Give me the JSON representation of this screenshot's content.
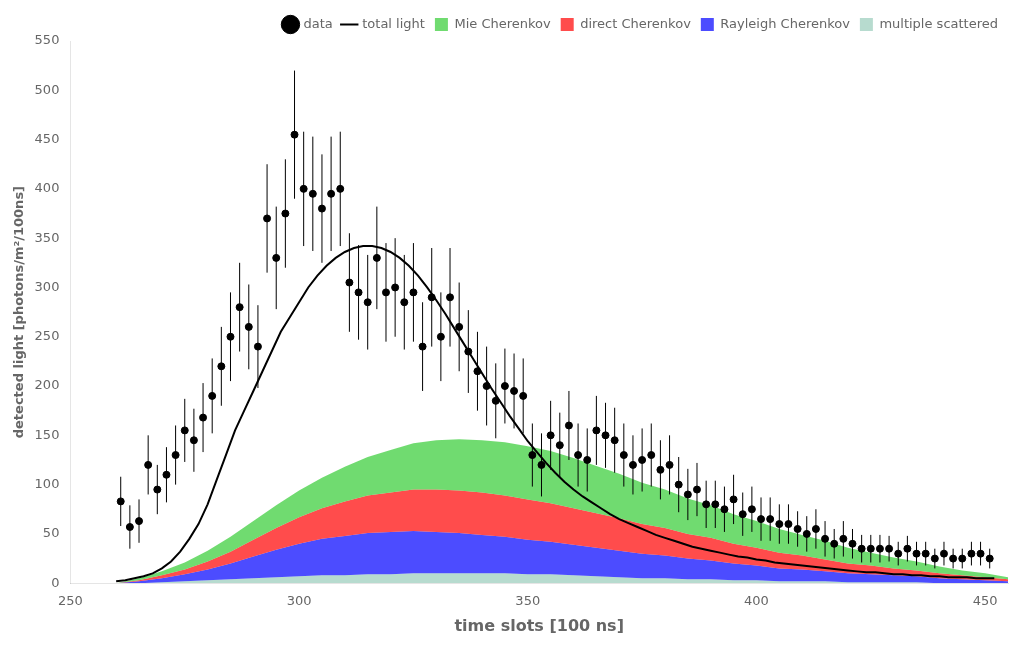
{
  "chart_data": {
    "type": "line",
    "xlabel": "time slots [100 ns]",
    "ylabel": "detected light [photons/m²/100ns]",
    "xlim": [
      250,
      455
    ],
    "ylim": [
      0,
      550
    ],
    "xticks": [
      250,
      300,
      350,
      400,
      450
    ],
    "yticks": [
      0,
      50,
      100,
      150,
      200,
      250,
      300,
      350,
      400,
      450,
      500,
      550
    ],
    "grid": false,
    "legend": "upper right",
    "stacked": true,
    "series": [
      {
        "name": "data",
        "type": "scatter",
        "marker": "circle",
        "color": "#000000",
        "x": [
          261,
          263,
          265,
          267,
          269,
          271,
          273,
          275,
          277,
          279,
          281,
          283,
          285,
          287,
          289,
          291,
          293,
          295,
          297,
          299,
          301,
          303,
          305,
          307,
          309,
          311,
          313,
          315,
          317,
          319,
          321,
          323,
          325,
          327,
          329,
          331,
          333,
          335,
          337,
          339,
          341,
          343,
          345,
          347,
          349,
          351,
          353,
          355,
          357,
          359,
          361,
          363,
          365,
          367,
          369,
          371,
          373,
          375,
          377,
          379,
          381,
          383,
          385,
          387,
          389,
          391,
          393,
          395,
          397,
          399,
          401,
          403,
          405,
          407,
          409,
          411,
          413,
          415,
          417,
          419,
          421,
          423,
          425,
          427,
          429,
          431,
          433,
          435,
          437,
          439,
          441,
          443,
          445,
          447,
          449,
          451
        ],
        "values": [
          83,
          57,
          63,
          120,
          95,
          110,
          130,
          155,
          145,
          168,
          190,
          220,
          250,
          280,
          260,
          240,
          370,
          330,
          375,
          455,
          400,
          395,
          380,
          395,
          400,
          305,
          295,
          285,
          330,
          295,
          300,
          285,
          295,
          240,
          290,
          250,
          290,
          260,
          235,
          215,
          200,
          185,
          200,
          195,
          190,
          130,
          120,
          150,
          140,
          160,
          130,
          125,
          155,
          150,
          145,
          130,
          120,
          125,
          130,
          115,
          120,
          100,
          90,
          95,
          80,
          80,
          75,
          85,
          70,
          75,
          65,
          65,
          60,
          60,
          55,
          50,
          55,
          45,
          40,
          45,
          40,
          35,
          35,
          35,
          35,
          30,
          35,
          30,
          30,
          25,
          30,
          25,
          25,
          30,
          30,
          25
        ],
        "yerr": [
          25,
          22,
          22,
          30,
          25,
          28,
          30,
          32,
          32,
          35,
          38,
          40,
          45,
          45,
          43,
          42,
          55,
          52,
          55,
          65,
          58,
          58,
          55,
          58,
          58,
          50,
          48,
          48,
          52,
          50,
          50,
          48,
          50,
          45,
          50,
          45,
          50,
          45,
          42,
          40,
          40,
          38,
          38,
          38,
          38,
          32,
          32,
          35,
          33,
          35,
          32,
          32,
          35,
          33,
          33,
          32,
          30,
          32,
          32,
          30,
          30,
          28,
          26,
          27,
          24,
          24,
          23,
          25,
          22,
          23,
          22,
          22,
          20,
          20,
          18,
          18,
          20,
          18,
          15,
          18,
          15,
          14,
          14,
          14,
          13,
          12,
          13,
          12,
          12,
          10,
          12,
          10,
          10,
          12,
          12,
          10
        ]
      },
      {
        "name": "total light",
        "type": "line",
        "line_style": "solid",
        "color": "#000000",
        "x": [
          260,
          262,
          264,
          266,
          268,
          270,
          272,
          274,
          276,
          278,
          280,
          282,
          284,
          286,
          288,
          290,
          292,
          294,
          296,
          298,
          300,
          302,
          304,
          306,
          308,
          310,
          312,
          314,
          316,
          318,
          320,
          322,
          324,
          326,
          328,
          330,
          332,
          334,
          336,
          338,
          340,
          342,
          344,
          346,
          348,
          350,
          352,
          354,
          356,
          358,
          360,
          362,
          364,
          366,
          368,
          370,
          372,
          374,
          376,
          378,
          380,
          382,
          384,
          386,
          388,
          390,
          392,
          394,
          396,
          398,
          400,
          402,
          404,
          406,
          408,
          410,
          412,
          414,
          416,
          418,
          420,
          422,
          424,
          426,
          428,
          430,
          432,
          434,
          436,
          438,
          440,
          442,
          444,
          446,
          448,
          450,
          452
        ],
        "values": [
          2,
          3,
          5,
          7,
          10,
          15,
          22,
          32,
          45,
          60,
          80,
          105,
          130,
          155,
          175,
          195,
          215,
          235,
          255,
          270,
          285,
          300,
          312,
          322,
          330,
          336,
          340,
          342,
          342,
          340,
          336,
          330,
          322,
          312,
          300,
          287,
          273,
          258,
          243,
          228,
          213,
          198,
          184,
          170,
          157,
          144,
          133,
          122,
          112,
          103,
          95,
          88,
          82,
          76,
          70,
          65,
          61,
          57,
          53,
          49,
          46,
          43,
          40,
          37,
          35,
          33,
          31,
          29,
          27,
          26,
          24,
          23,
          21,
          20,
          19,
          18,
          17,
          16,
          15,
          14,
          13,
          12,
          11,
          11,
          10,
          9,
          9,
          8,
          8,
          7,
          7,
          6,
          6,
          6,
          5,
          5,
          5
        ]
      },
      {
        "name": "Mie Cherenkov",
        "type": "area",
        "color": "#33cc33",
        "x": [
          260,
          265,
          270,
          275,
          280,
          285,
          290,
          295,
          300,
          305,
          310,
          315,
          320,
          325,
          330,
          335,
          340,
          345,
          350,
          355,
          360,
          365,
          370,
          375,
          380,
          385,
          390,
          395,
          400,
          405,
          410,
          415,
          420,
          425,
          430,
          435,
          440,
          445,
          450,
          455
        ],
        "values": [
          0,
          2,
          4,
          7,
          11,
          15,
          19,
          23,
          27,
          31,
          35,
          39,
          43,
          47,
          50,
          52,
          53,
          54,
          54,
          53,
          51,
          48,
          45,
          42,
          39,
          36,
          33,
          30,
          27,
          24,
          21,
          19,
          16,
          13,
          11,
          9,
          7,
          5,
          4,
          2
        ]
      },
      {
        "name": "direct Cherenkov",
        "type": "area",
        "color": "#ff0000",
        "x": [
          260,
          265,
          270,
          275,
          280,
          285,
          290,
          295,
          300,
          305,
          310,
          315,
          320,
          325,
          330,
          335,
          340,
          345,
          350,
          355,
          360,
          365,
          370,
          375,
          380,
          385,
          390,
          395,
          400,
          405,
          410,
          415,
          420,
          425,
          430,
          435,
          440,
          445,
          450,
          455
        ],
        "values": [
          0,
          1,
          3,
          5,
          8,
          12,
          17,
          22,
          27,
          31,
          35,
          38,
          40,
          42,
          43,
          43,
          43,
          42,
          41,
          39,
          37,
          35,
          33,
          30,
          28,
          25,
          23,
          20,
          18,
          16,
          14,
          12,
          10,
          9,
          7,
          6,
          5,
          4,
          3,
          2
        ]
      },
      {
        "name": "Rayleigh Cherenkov",
        "type": "area",
        "color": "#0000ff",
        "x": [
          260,
          265,
          270,
          275,
          280,
          285,
          290,
          295,
          300,
          305,
          310,
          315,
          320,
          325,
          330,
          335,
          340,
          345,
          350,
          355,
          360,
          365,
          370,
          375,
          380,
          385,
          390,
          395,
          400,
          405,
          410,
          415,
          420,
          425,
          430,
          435,
          440,
          445,
          450,
          455
        ],
        "values": [
          0,
          2,
          4,
          7,
          11,
          16,
          22,
          28,
          33,
          37,
          40,
          42,
          43,
          43,
          42,
          41,
          39,
          37,
          35,
          33,
          31,
          29,
          27,
          25,
          23,
          21,
          19,
          17,
          15,
          13,
          12,
          10,
          9,
          8,
          7,
          6,
          5,
          4,
          3,
          2
        ]
      },
      {
        "name": "multiple scattered",
        "type": "area",
        "color": "#99ccbb",
        "x": [
          260,
          265,
          270,
          275,
          280,
          285,
          290,
          295,
          300,
          305,
          310,
          315,
          320,
          325,
          330,
          335,
          340,
          345,
          350,
          355,
          360,
          365,
          370,
          375,
          380,
          385,
          390,
          395,
          400,
          405,
          410,
          415,
          420,
          425,
          430,
          435,
          440,
          445,
          450,
          455
        ],
        "values": [
          0,
          0,
          1,
          2,
          3,
          4,
          5,
          6,
          7,
          8,
          8,
          9,
          9,
          10,
          10,
          10,
          10,
          10,
          9,
          9,
          8,
          7,
          6,
          5,
          5,
          4,
          4,
          3,
          3,
          2,
          2,
          2,
          1,
          1,
          1,
          1,
          0,
          0,
          0,
          0
        ]
      }
    ]
  }
}
